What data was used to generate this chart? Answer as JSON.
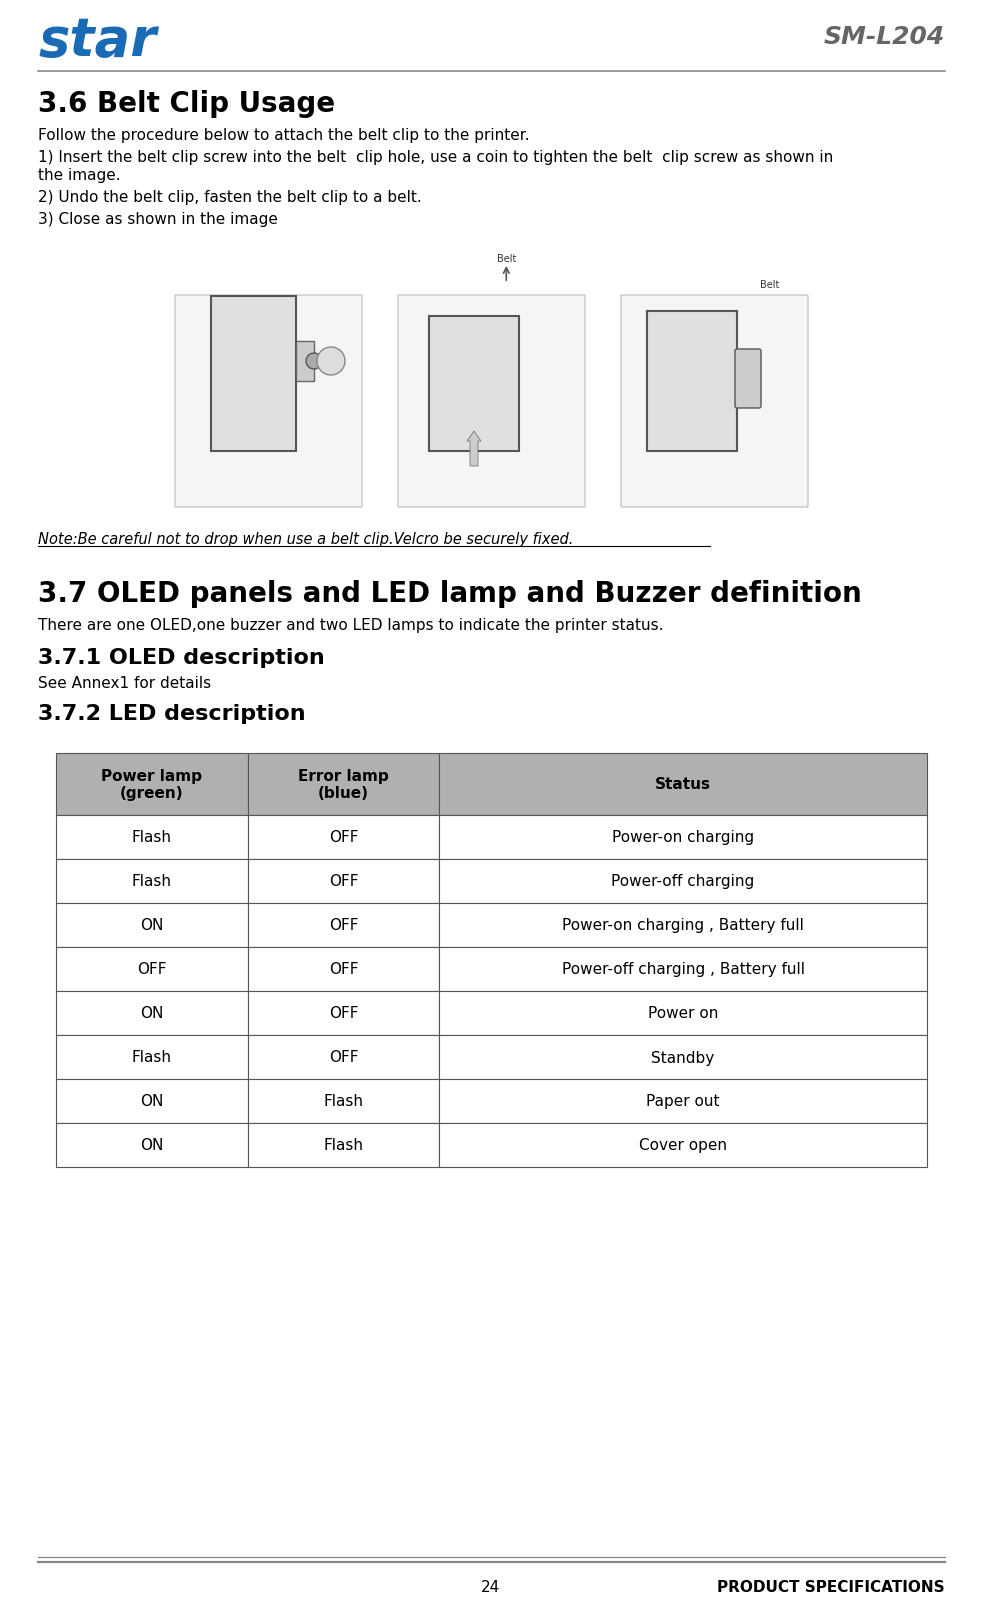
{
  "title_model": "SM-L204",
  "header_line_color": "#888888",
  "section_36_title": "3.6 Belt Clip Usage",
  "section_36_body_0": "Follow the procedure below to attach the belt clip to the printer.",
  "section_36_body_1a": "1) Insert the belt clip screw into the belt  clip hole, use a coin to tighten the belt  clip screw as shown in",
  "section_36_body_1b": "the image.",
  "section_36_body_2": "2) Undo the belt clip, fasten the belt clip to a belt.",
  "section_36_body_3": "3) Close as shown in the image",
  "note_text": "Note:Be careful not to drop when use a belt clip.Velcro be securely fixed.",
  "section_37_title": "3.7 OLED panels and LED lamp and Buzzer definition",
  "section_37_body": "There are one OLED,one buzzer and two LED lamps to indicate the printer status.",
  "section_371_title": "3.7.1 OLED description",
  "section_371_body": "See Annex1 for details",
  "section_372_title": "3.7.2 LED description",
  "table_headers": [
    "Power lamp\n(green)",
    "Error lamp\n(blue)",
    "Status"
  ],
  "table_rows": [
    [
      "Flash",
      "OFF",
      "Power-on charging"
    ],
    [
      "Flash",
      "OFF",
      "Power-off charging"
    ],
    [
      "ON",
      "OFF",
      "Power-on charging , Battery full"
    ],
    [
      "OFF",
      "OFF",
      "Power-off charging , Battery full"
    ],
    [
      "ON",
      "OFF",
      "Power on"
    ],
    [
      "Flash",
      "OFF",
      "Standby"
    ],
    [
      "ON",
      "Flash",
      "Paper out"
    ],
    [
      "ON",
      "Flash",
      "Cover open"
    ]
  ],
  "table_header_bg": "#b0b0b0",
  "table_border_color": "#555555",
  "footer_page": "24",
  "footer_right": "PRODUCT SPECIFICATIONS",
  "bg_color": "#ffffff",
  "text_color": "#000000",
  "gray_color": "#666666",
  "logo_color": "#1a6bb5"
}
